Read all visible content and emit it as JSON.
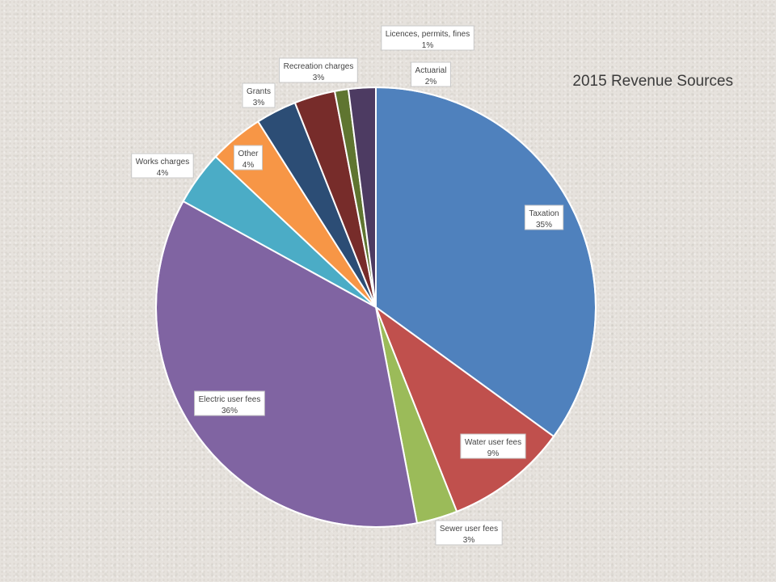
{
  "chart_data": {
    "type": "pie",
    "title": "2015 Revenue Sources",
    "slices": [
      {
        "label": "Taxation",
        "value": 35,
        "pct": "35%",
        "color": "#4f81bd"
      },
      {
        "label": "Water user fees",
        "value": 9,
        "pct": "9%",
        "color": "#c0504d"
      },
      {
        "label": "Sewer user fees",
        "value": 3,
        "pct": "3%",
        "color": "#9bbb59"
      },
      {
        "label": "Electric user fees",
        "value": 36,
        "pct": "36%",
        "color": "#8064a2"
      },
      {
        "label": "Works charges",
        "value": 4,
        "pct": "4%",
        "color": "#4bacc6"
      },
      {
        "label": "Other",
        "value": 4,
        "pct": "4%",
        "color": "#f79646"
      },
      {
        "label": "Grants",
        "value": 3,
        "pct": "3%",
        "color": "#2c4d75"
      },
      {
        "label": "Recreation charges",
        "value": 3,
        "pct": "3%",
        "color": "#772c2a"
      },
      {
        "label": "Licences, permits, fines",
        "value": 1,
        "pct": "1%",
        "color": "#5f7530"
      },
      {
        "label": "Actuarial",
        "value": 2,
        "pct": "2%",
        "color": "#4d3b62"
      }
    ],
    "legend": "none",
    "data_labels": "category and percentage"
  }
}
